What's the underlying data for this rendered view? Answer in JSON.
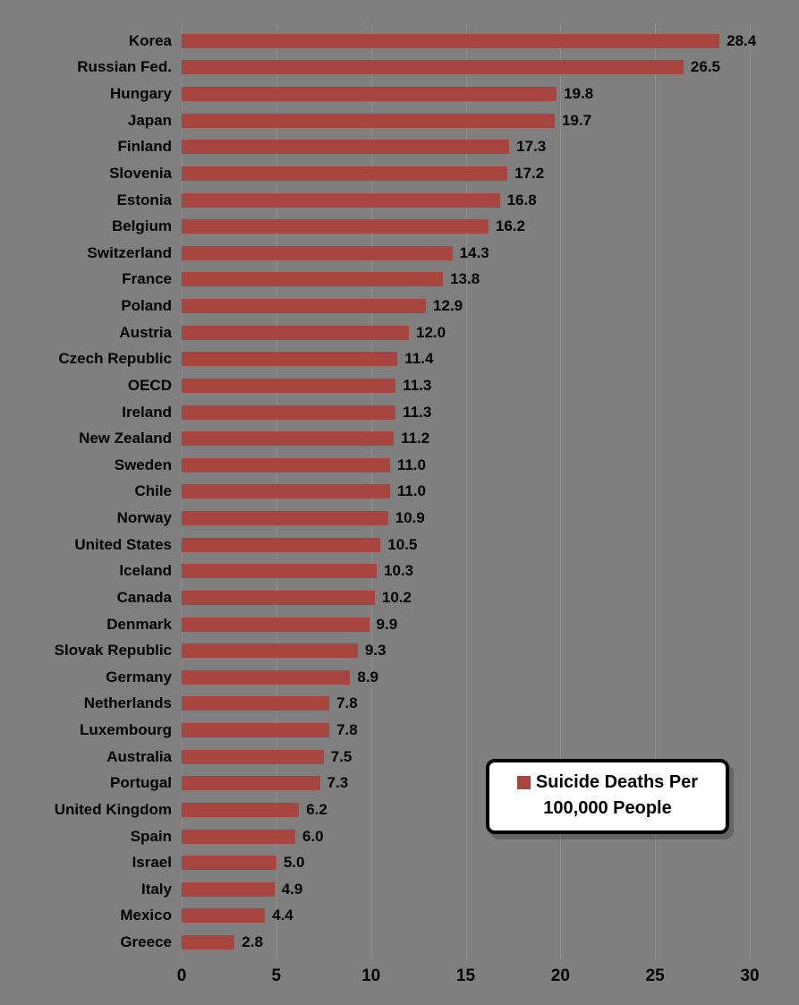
{
  "chart_data": {
    "type": "bar",
    "orientation": "horizontal",
    "title": "",
    "xlabel": "",
    "ylabel": "",
    "xlim": [
      0,
      30
    ],
    "x_ticks": [
      "0",
      "5",
      "10",
      "15",
      "20",
      "25",
      "30"
    ],
    "grid": true,
    "legend_position": "lower-right",
    "categories": [
      "Korea",
      "Russian Fed.",
      "Hungary",
      "Japan",
      "Finland",
      "Slovenia",
      "Estonia",
      "Belgium",
      "Switzerland",
      "France",
      "Poland",
      "Austria",
      "Czech Republic",
      "OECD",
      "Ireland",
      "New Zealand",
      "Sweden",
      "Chile",
      "Norway",
      "United States",
      "Iceland",
      "Canada",
      "Denmark",
      "Slovak Republic",
      "Germany",
      "Netherlands",
      "Luxembourg",
      "Australia",
      "Portugal",
      "United Kingdom",
      "Spain",
      "Israel",
      "Italy",
      "Mexico",
      "Greece"
    ],
    "values": [
      28.4,
      26.5,
      19.8,
      19.7,
      17.3,
      17.2,
      16.8,
      16.2,
      14.3,
      13.8,
      12.9,
      12.0,
      11.4,
      11.3,
      11.3,
      11.2,
      11.0,
      11.0,
      10.9,
      10.5,
      10.3,
      10.2,
      9.9,
      9.3,
      8.9,
      7.8,
      7.8,
      7.5,
      7.3,
      6.2,
      6.0,
      5.0,
      4.9,
      4.4,
      2.8
    ],
    "value_labels": [
      "28.4",
      "26.5",
      "19.8",
      "19.7",
      "17.3",
      "17.2",
      "16.8",
      "16.2",
      "14.3",
      "13.8",
      "12.9",
      "12.0",
      "11.4",
      "11.3",
      "11.3",
      "11.2",
      "11.0",
      "11.0",
      "10.9",
      "10.5",
      "10.3",
      "10.2",
      "9.9",
      "9.3",
      "8.9",
      "7.8",
      "7.8",
      "7.5",
      "7.3",
      "6.2",
      "6.0",
      "5.0",
      "4.9",
      "4.4",
      "2.8"
    ],
    "legend": {
      "line1": "Suicide Deaths Per",
      "line2": "100,000 People"
    },
    "colors": {
      "bar": "#A9453F",
      "background": "#7F7F7F",
      "gridline": "#8C8C8C",
      "text": "#000000",
      "legend_background": "#FFFFFF",
      "legend_border": "#000000"
    }
  }
}
